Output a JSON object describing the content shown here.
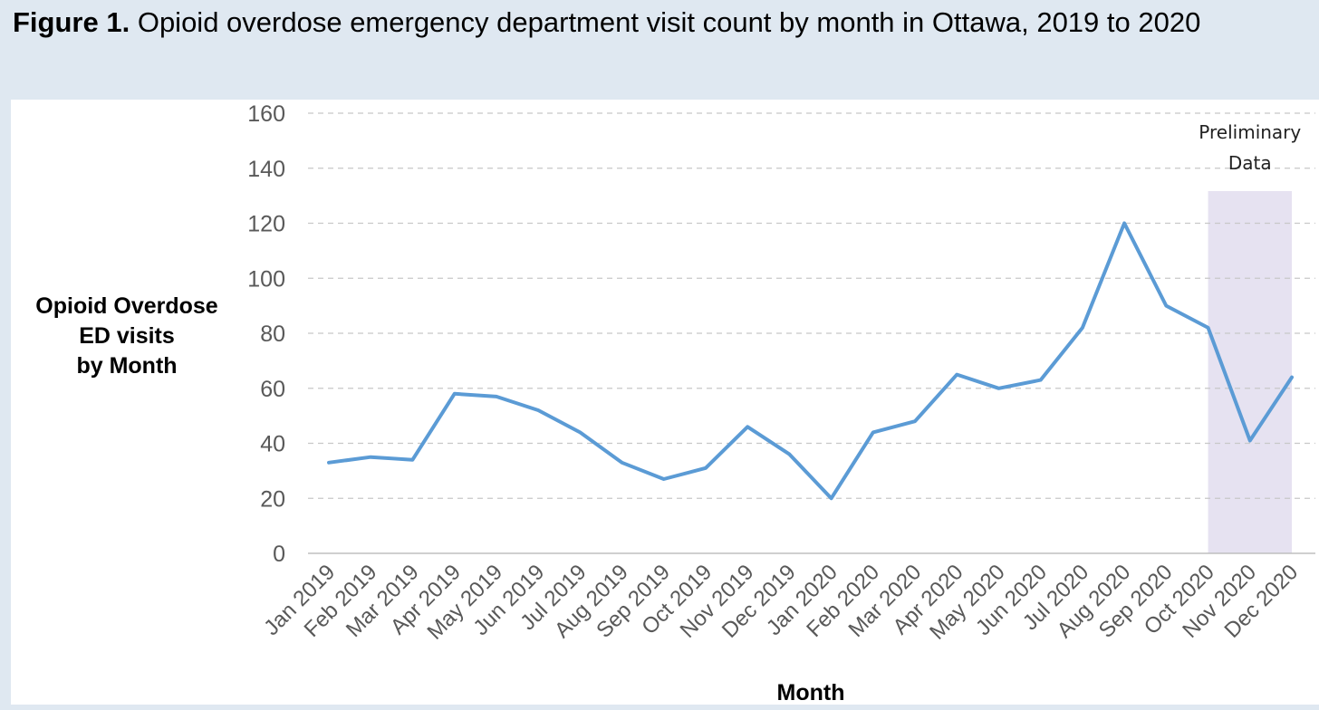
{
  "figure": {
    "label": "Figure 1.",
    "title": "Opioid overdose emergency department visit count by month in Ottawa, 2019 to 2020"
  },
  "annotation": {
    "line1": "Preliminary",
    "line2": "Data",
    "start_category": "Oct 2020",
    "end_category": "Dec 2020",
    "shade_color": "#e6e2f1"
  },
  "colors": {
    "line": "#5b9bd5",
    "grid": "#c8c8c8",
    "tick_text": "#595959",
    "background": "#dfe8f1"
  },
  "chart_data": {
    "type": "line",
    "title": "Opioid overdose emergency department visit count by month in Ottawa, 2019 to 2020",
    "xlabel": "Month",
    "ylabel_lines": [
      "Opioid Overdose",
      "ED visits",
      "by Month"
    ],
    "ylim": [
      0,
      160
    ],
    "yticks": [
      0,
      20,
      40,
      60,
      80,
      100,
      120,
      140,
      160
    ],
    "grid": true,
    "categories": [
      "Jan 2019",
      "Feb 2019",
      "Mar 2019",
      "Apr 2019",
      "May 2019",
      "Jun 2019",
      "Jul 2019",
      "Aug 2019",
      "Sep 2019",
      "Oct 2019",
      "Nov 2019",
      "Dec 2019",
      "Jan 2020",
      "Feb 2020",
      "Mar 2020",
      "Apr 2020",
      "May 2020",
      "Jun 2020",
      "Jul 2020",
      "Aug 2020",
      "Sep 2020",
      "Oct 2020",
      "Nov 2020",
      "Dec 2020"
    ],
    "series": [
      {
        "name": "Opioid overdose ED visits",
        "values": [
          33,
          35,
          34,
          58,
          57,
          52,
          44,
          33,
          27,
          31,
          46,
          36,
          20,
          44,
          48,
          65,
          60,
          63,
          82,
          120,
          90,
          82,
          41,
          64
        ]
      }
    ]
  }
}
